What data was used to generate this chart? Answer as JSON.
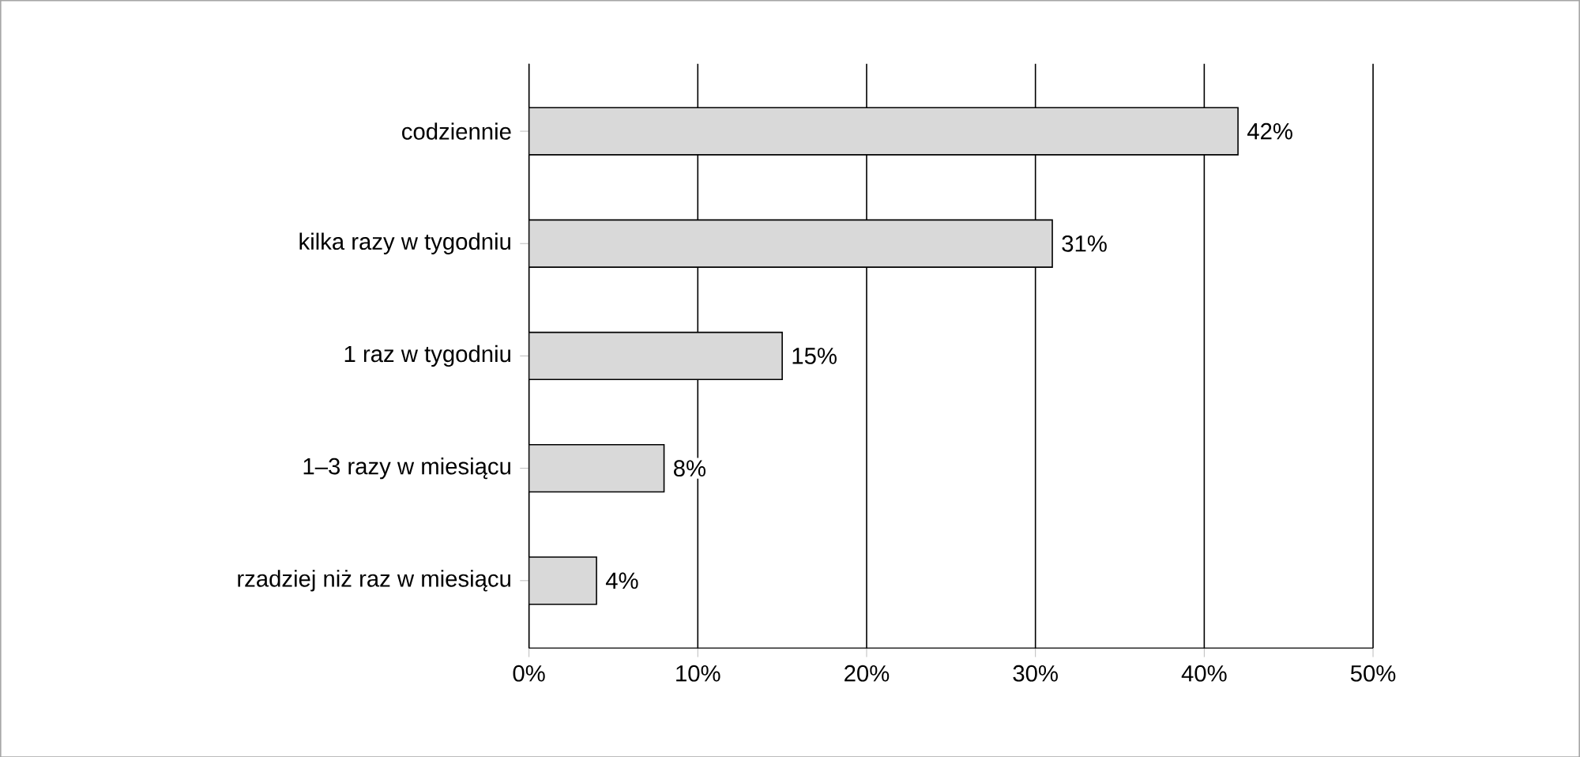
{
  "chart_data": {
    "type": "bar",
    "orientation": "horizontal",
    "categories": [
      "codziennie",
      "kilka razy w tygodniu",
      "1 raz w tygodniu",
      "1–3 razy w miesiącu",
      "rzadziej niż raz w miesiącu"
    ],
    "values": [
      42,
      31,
      15,
      8,
      4
    ],
    "value_labels": [
      "42%",
      "31%",
      "15%",
      "8%",
      "4%"
    ],
    "color": "#d9d9d9",
    "xlim": [
      0,
      50
    ],
    "xticks": [
      {
        "value": 0,
        "label": "0%"
      },
      {
        "value": 10,
        "label": "10%"
      },
      {
        "value": 20,
        "label": "20%"
      },
      {
        "value": 30,
        "label": "30%"
      },
      {
        "value": 40,
        "label": "40%"
      },
      {
        "value": 50,
        "label": "50%"
      }
    ],
    "grid": "x"
  }
}
